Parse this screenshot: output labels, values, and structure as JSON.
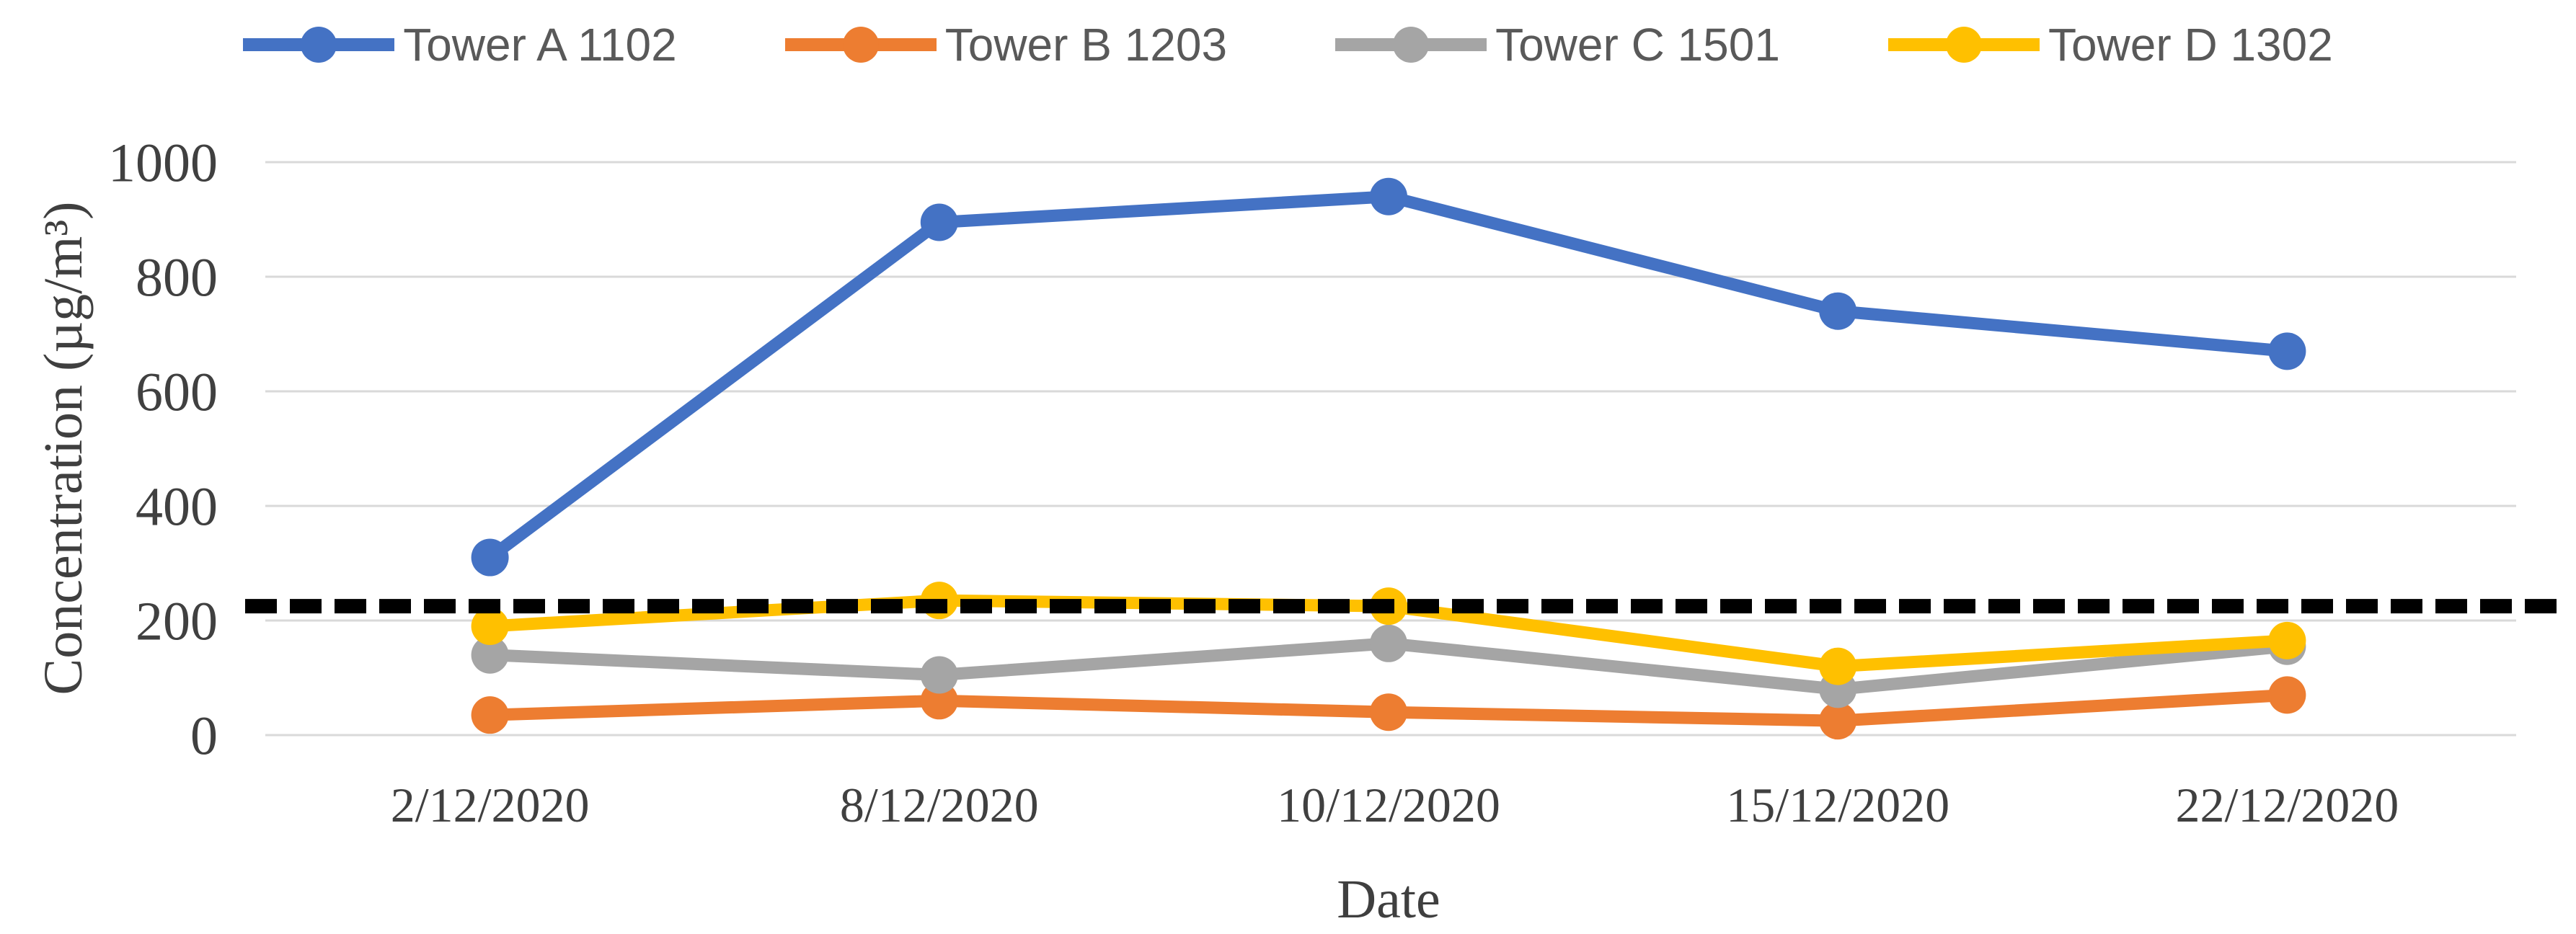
{
  "chart_data": {
    "type": "line",
    "title": "",
    "xlabel": "Date",
    "ylabel": "Concentration (µg/m³)",
    "ylim": [
      0,
      1000
    ],
    "yticks": [
      0,
      200,
      400,
      600,
      800,
      1000
    ],
    "grid": "horizontal",
    "legend_position": "top",
    "categories": [
      "2/12/2020",
      "8/12/2020",
      "10/12/2020",
      "15/12/2020",
      "22/12/2020"
    ],
    "series": [
      {
        "name": "Tower A 1102",
        "color": "#4472C4",
        "values": [
          310,
          895,
          940,
          740,
          670
        ]
      },
      {
        "name": "Tower B 1203",
        "color": "#ED7D31",
        "values": [
          35,
          60,
          40,
          25,
          70
        ]
      },
      {
        "name": "Tower C 1501",
        "color": "#A5A5A5",
        "values": [
          140,
          105,
          160,
          80,
          155
        ]
      },
      {
        "name": "Tower D 1302",
        "color": "#FFC000",
        "values": [
          190,
          235,
          225,
          120,
          165
        ]
      }
    ],
    "threshold_line": {
      "value": 225,
      "color": "#000000",
      "style": "dashed"
    }
  },
  "colors": {
    "gridline": "#D9D9D9",
    "tick_text": "#404040",
    "legend_text": "#595959",
    "background": "#FFFFFF"
  }
}
